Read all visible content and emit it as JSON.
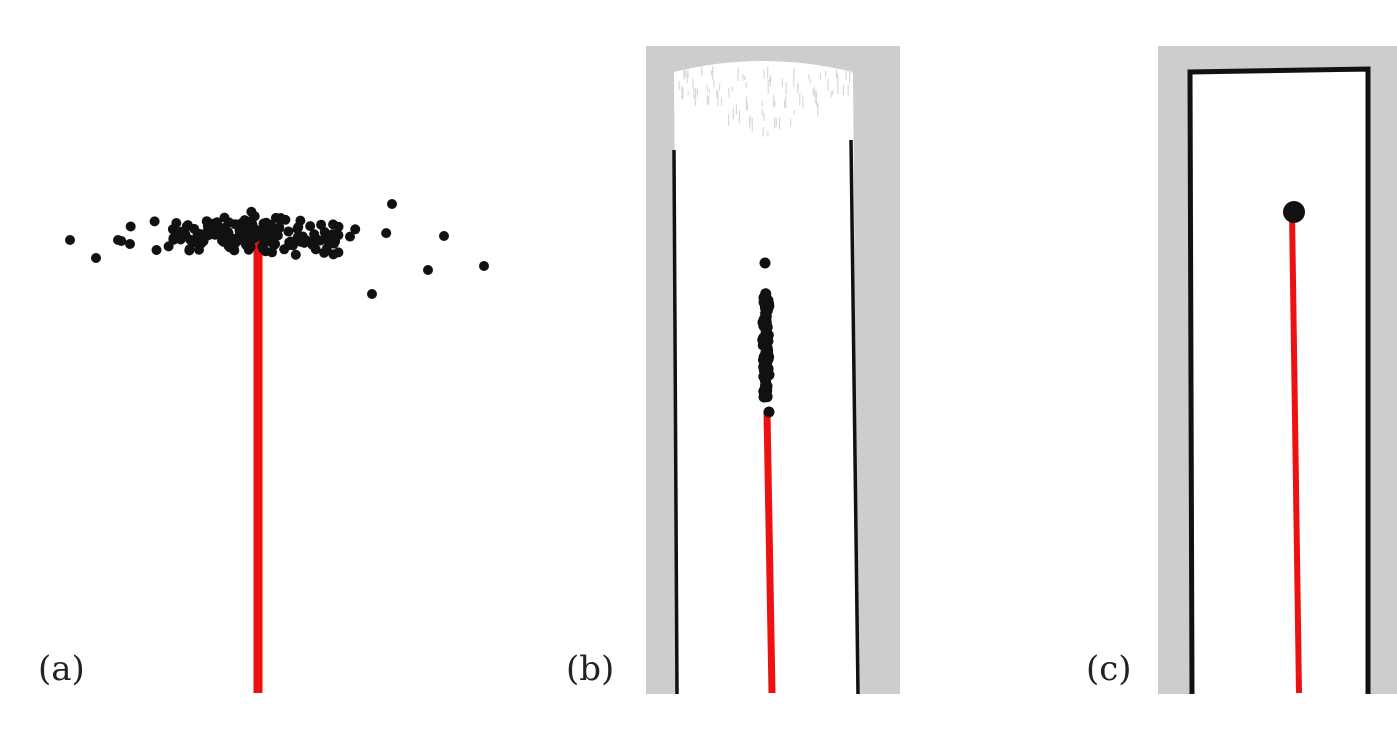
{
  "panels": [
    {
      "id": "a",
      "label": "(a)",
      "has_map": false,
      "estimate": "scattered-particles"
    },
    {
      "id": "b",
      "label": "(b)",
      "has_map": true,
      "map_state": "partial-corridor",
      "estimate": "elongated-particle-cluster"
    },
    {
      "id": "c",
      "label": "(c)",
      "has_map": true,
      "map_state": "complete-corridor",
      "estimate": "single-converged-point"
    }
  ],
  "colors": {
    "trajectory": "#ee1111",
    "particles": "#111111",
    "map_unknown": "#cdcdcd",
    "map_free": "#ffffff",
    "map_wall": "#111111",
    "background": "#ffffff"
  }
}
